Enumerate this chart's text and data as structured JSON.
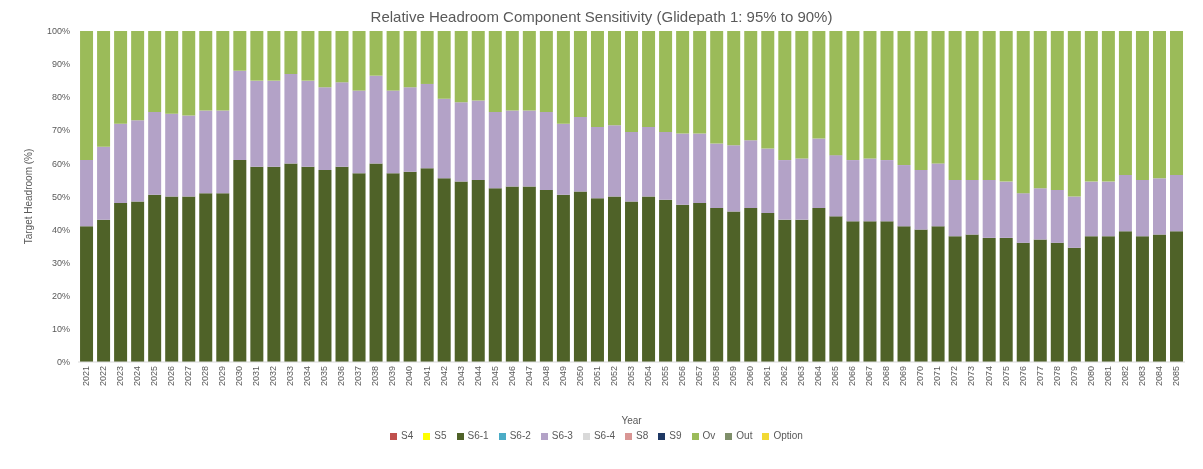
{
  "chart_data": {
    "type": "bar",
    "stacked": true,
    "title": "Relative Headroom Component Sensitivity (Glidepath 1: 95% to 90%)",
    "xlabel": "Year",
    "ylabel": "Target Headroom (%)",
    "categories": [
      "2021",
      "2022",
      "2023",
      "2024",
      "2025",
      "2026",
      "2027",
      "2028",
      "2029",
      "2030",
      "2031",
      "2032",
      "2033",
      "2034",
      "2035",
      "2036",
      "2037",
      "2038",
      "2039",
      "2040",
      "2041",
      "2042",
      "2043",
      "2044",
      "2045",
      "2046",
      "2047",
      "2048",
      "2049",
      "2050",
      "2051",
      "2052",
      "2053",
      "2054",
      "2055",
      "2056",
      "2057",
      "2058",
      "2059",
      "2060",
      "2061",
      "2062",
      "2063",
      "2064",
      "2065",
      "2066",
      "2067",
      "2068",
      "2069",
      "2070",
      "2071",
      "2072",
      "2073",
      "2074",
      "2075",
      "2076",
      "2077",
      "2078",
      "2079",
      "2080",
      "2081",
      "2082",
      "2083",
      "2084",
      "2085"
    ],
    "ylim": [
      0,
      100
    ],
    "yticks": [
      {
        "value": 0,
        "label": "0%"
      },
      {
        "value": 10,
        "label": "10%"
      },
      {
        "value": 20,
        "label": "20%"
      },
      {
        "value": 30,
        "label": "30%"
      },
      {
        "value": 40,
        "label": "40%"
      },
      {
        "value": 50,
        "label": "50%"
      },
      {
        "value": 60,
        "label": "60%"
      },
      {
        "value": 70,
        "label": "70%"
      },
      {
        "value": 80,
        "label": "80%"
      },
      {
        "value": 90,
        "label": "90%"
      },
      {
        "value": 100,
        "label": "100%"
      }
    ],
    "legend": "bottom",
    "series": [
      {
        "name": "S4",
        "color": "#c0504d",
        "values": [
          0,
          0,
          0,
          0,
          0,
          0,
          0,
          0,
          0,
          0,
          0,
          0,
          0,
          0,
          0,
          0,
          0,
          0,
          0,
          0,
          0,
          0,
          0,
          0,
          0,
          0,
          0,
          0,
          0,
          0,
          0,
          0,
          0,
          0,
          0,
          0,
          0,
          0,
          0,
          0,
          0,
          0,
          0,
          0,
          0,
          0,
          0,
          0,
          0,
          0,
          0,
          0,
          0,
          0,
          0,
          0,
          0,
          0,
          0,
          0,
          0,
          0,
          0,
          0,
          0
        ]
      },
      {
        "name": "S5",
        "color": "#ffff00",
        "values": [
          0,
          0,
          0,
          0,
          0,
          0,
          0,
          0,
          0,
          0,
          0,
          0,
          0,
          0,
          0,
          0,
          0,
          0,
          0,
          0,
          0,
          0,
          0,
          0,
          0,
          0,
          0,
          0,
          0,
          0,
          0,
          0,
          0,
          0,
          0,
          0,
          0,
          0,
          0,
          0,
          0,
          0,
          0,
          0,
          0,
          0,
          0,
          0,
          0,
          0,
          0,
          0,
          0,
          0,
          0,
          0,
          0,
          0,
          0,
          0,
          0,
          0,
          0,
          0,
          0
        ]
      },
      {
        "name": "S6-1",
        "color": "#4f6228",
        "values": [
          41,
          43,
          48,
          48.5,
          50.5,
          50,
          50,
          51,
          51,
          61,
          59,
          59,
          60,
          59,
          58,
          59,
          57,
          60,
          57,
          57.5,
          58.5,
          55.5,
          54.5,
          55,
          52.5,
          53,
          53,
          52,
          50.5,
          51.5,
          49.5,
          50,
          48.5,
          50,
          49,
          47.5,
          48,
          46.5,
          45.5,
          46.5,
          45,
          43,
          43,
          46.5,
          44,
          42.5,
          42.5,
          42.5,
          41,
          40,
          41,
          38,
          38.5,
          37.5,
          37.5,
          36,
          37,
          36,
          34.5,
          38,
          38,
          39.5,
          38,
          38.5,
          39.5
        ]
      },
      {
        "name": "S6-2",
        "color": "#4bacc6",
        "values": [
          0,
          0,
          0,
          0,
          0,
          0,
          0,
          0,
          0,
          0,
          0,
          0,
          0,
          0,
          0,
          0,
          0,
          0,
          0,
          0,
          0,
          0,
          0,
          0,
          0,
          0,
          0,
          0,
          0,
          0,
          0,
          0,
          0,
          0,
          0,
          0,
          0,
          0,
          0,
          0,
          0,
          0,
          0,
          0,
          0,
          0,
          0,
          0,
          0,
          0,
          0,
          0,
          0,
          0,
          0,
          0,
          0,
          0,
          0,
          0,
          0,
          0,
          0,
          0,
          0
        ]
      },
      {
        "name": "S6-3",
        "color": "#b3a2c7",
        "values": [
          20,
          22,
          24,
          24.5,
          25,
          25,
          24.5,
          25,
          25,
          27,
          26,
          26,
          27,
          26,
          25,
          25.5,
          25,
          26.5,
          25,
          25.5,
          25.5,
          24,
          24,
          24,
          23,
          23,
          23,
          23.5,
          21.5,
          22.5,
          21.5,
          21.5,
          21,
          21,
          20.5,
          21.5,
          21,
          19.5,
          20,
          20.5,
          19.5,
          18,
          18.5,
          21,
          18.5,
          18.5,
          19,
          18.5,
          18.5,
          18,
          19,
          17,
          16.5,
          17.5,
          17,
          15,
          15.5,
          16,
          15.5,
          16.5,
          16.5,
          17,
          17,
          17,
          17
        ]
      },
      {
        "name": "S6-4",
        "color": "#d9d9d9",
        "values": [
          0,
          0,
          0,
          0,
          0,
          0,
          0,
          0,
          0,
          0,
          0,
          0,
          0,
          0,
          0,
          0,
          0,
          0,
          0,
          0,
          0,
          0,
          0,
          0,
          0,
          0,
          0,
          0,
          0,
          0,
          0,
          0,
          0,
          0,
          0,
          0,
          0,
          0,
          0,
          0,
          0,
          0,
          0,
          0,
          0,
          0,
          0,
          0,
          0,
          0,
          0,
          0,
          0,
          0,
          0,
          0,
          0,
          0,
          0,
          0,
          0,
          0,
          0,
          0,
          0
        ]
      },
      {
        "name": "S8",
        "color": "#d99694",
        "values": [
          0,
          0,
          0,
          0,
          0,
          0,
          0,
          0,
          0,
          0,
          0,
          0,
          0,
          0,
          0,
          0,
          0,
          0,
          0,
          0,
          0,
          0,
          0,
          0,
          0,
          0,
          0,
          0,
          0,
          0,
          0,
          0,
          0,
          0,
          0,
          0,
          0,
          0,
          0,
          0,
          0,
          0,
          0,
          0,
          0,
          0,
          0,
          0,
          0,
          0,
          0,
          0,
          0,
          0,
          0,
          0,
          0,
          0,
          0,
          0,
          0,
          0,
          0,
          0,
          0
        ]
      },
      {
        "name": "S9",
        "color": "#1f3864",
        "values": [
          0,
          0,
          0,
          0,
          0,
          0,
          0,
          0,
          0,
          0,
          0,
          0,
          0,
          0,
          0,
          0,
          0,
          0,
          0,
          0,
          0,
          0,
          0,
          0,
          0,
          0,
          0,
          0,
          0,
          0,
          0,
          0,
          0,
          0,
          0,
          0,
          0,
          0,
          0,
          0,
          0,
          0,
          0,
          0,
          0,
          0,
          0,
          0,
          0,
          0,
          0,
          0,
          0,
          0,
          0,
          0,
          0,
          0,
          0,
          0,
          0,
          0,
          0,
          0,
          0
        ]
      },
      {
        "name": "Ov",
        "color": "#9bbb59",
        "values": [
          39,
          35,
          28,
          27,
          24.5,
          25,
          25.5,
          24,
          24,
          12,
          15,
          15,
          13,
          15,
          17,
          15.5,
          18,
          13.5,
          18,
          17,
          16,
          20.5,
          21.5,
          21,
          24.5,
          24,
          24,
          24.5,
          28,
          26,
          29,
          28.5,
          30.5,
          29,
          30.5,
          31,
          31,
          34,
          34.5,
          33,
          35.5,
          39,
          38.5,
          32.5,
          37.5,
          39,
          38.5,
          39,
          40.5,
          42,
          40,
          45,
          45,
          45,
          45.5,
          49,
          47.5,
          48,
          50,
          45.5,
          45.5,
          43.5,
          45,
          44.5,
          43.5
        ]
      },
      {
        "name": "Out",
        "color": "#7f8f6a",
        "values": [
          0,
          0,
          0,
          0,
          0,
          0,
          0,
          0,
          0,
          0,
          0,
          0,
          0,
          0,
          0,
          0,
          0,
          0,
          0,
          0,
          0,
          0,
          0,
          0,
          0,
          0,
          0,
          0,
          0,
          0,
          0,
          0,
          0,
          0,
          0,
          0,
          0,
          0,
          0,
          0,
          0,
          0,
          0,
          0,
          0,
          0,
          0,
          0,
          0,
          0,
          0,
          0,
          0,
          0,
          0,
          0,
          0,
          0,
          0,
          0,
          0,
          0,
          0,
          0,
          0
        ]
      },
      {
        "name": "Option",
        "color": "#f2d934",
        "values": [
          0,
          0,
          0,
          0,
          0,
          0,
          0,
          0,
          0,
          0,
          0,
          0,
          0,
          0,
          0,
          0,
          0,
          0,
          0,
          0,
          0,
          0,
          0,
          0,
          0,
          0,
          0,
          0,
          0,
          0,
          0,
          0,
          0,
          0,
          0,
          0,
          0,
          0,
          0,
          0,
          0,
          0,
          0,
          0,
          0,
          0,
          0,
          0,
          0,
          0,
          0,
          0,
          0,
          0,
          0,
          0,
          0,
          0,
          0,
          0,
          0,
          0,
          0,
          0,
          0
        ]
      }
    ]
  }
}
